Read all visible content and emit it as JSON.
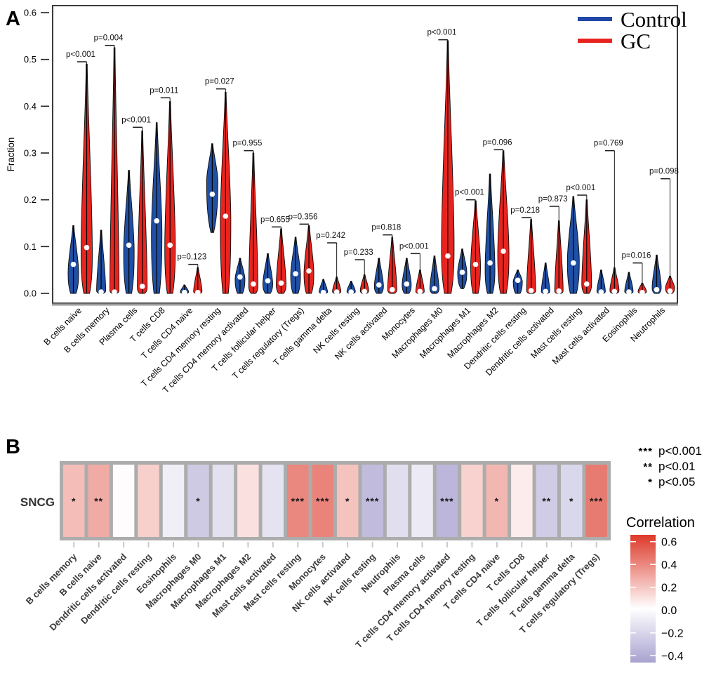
{
  "chart_data": [
    {
      "id": "violin_panel",
      "type": "violin",
      "panel_label": "A",
      "ylabel": "Fraction",
      "ylim": [
        0.0,
        0.6
      ],
      "yticks": [
        "0.0",
        "0.1",
        "0.2",
        "0.3",
        "0.4",
        "0.5",
        "0.6"
      ],
      "legend": [
        {
          "name": "Control",
          "color": "#2148a8"
        },
        {
          "name": "GC",
          "color": "#e8231f"
        }
      ],
      "categories": [
        "B cells naive",
        "B cells memory",
        "Plasma cells",
        "T cells CD8",
        "T cells CD4 naive",
        "T cells CD4 memory resting",
        "T cells CD4 memory activated",
        "T cells follicular helper",
        "T cells regulatory (Tregs)",
        "T cells gamma delta",
        "NK cells resting",
        "NK cells activated",
        "Monocytes",
        "Macrophages M0",
        "Macrophages M1",
        "Macrophages M2",
        "Dendritic cells resting",
        "Dendritic cells activated",
        "Mast cells resting",
        "Mast cells activated",
        "Eosinophils",
        "Neutrophils"
      ],
      "p_labels": [
        "p<0.001",
        "p=0.004",
        "p<0.001",
        "p=0.011",
        "p=0.123",
        "p=0.027",
        "p=0.955",
        "p=0.655",
        "p=0.356",
        "p=0.242",
        "p=0.233",
        "p=0.818",
        "p<0.001",
        "p<0.001",
        "p<0.001",
        "p=0.096",
        "p=0.218",
        "p=0.873",
        "p<0.001",
        "p=0.769",
        "p=0.016",
        "p=0.098"
      ],
      "bracket_y": [
        0.495,
        0.53,
        0.355,
        0.418,
        0.062,
        0.437,
        0.305,
        0.142,
        0.148,
        0.108,
        0.072,
        0.125,
        0.085,
        0.542,
        0.2,
        0.307,
        0.162,
        0.186,
        0.21,
        0.305,
        0.065,
        0.245
      ],
      "series": [
        {
          "name": "Control",
          "color": "#2050a5",
          "violins": [
            {
              "max": 0.145,
              "min": 0,
              "peak": 0.045,
              "median": 0.062,
              "w": 15
            },
            {
              "max": 0.135,
              "min": 0,
              "peak": 0.006,
              "median": 0.003,
              "w": 13
            },
            {
              "max": 0.263,
              "min": 0,
              "peak": 0.09,
              "median": 0.103,
              "w": 15
            },
            {
              "max": 0.365,
              "min": 0,
              "peak": 0.13,
              "median": 0.155,
              "w": 15
            },
            {
              "max": 0.018,
              "min": 0,
              "peak": 0.003,
              "median": 0.002,
              "w": 12
            },
            {
              "max": 0.32,
              "min": 0.13,
              "peak": 0.24,
              "median": 0.212,
              "w": 16
            },
            {
              "max": 0.075,
              "min": 0,
              "peak": 0.03,
              "median": 0.035,
              "w": 14
            },
            {
              "max": 0.085,
              "min": 0,
              "peak": 0.02,
              "median": 0.027,
              "w": 14
            },
            {
              "max": 0.12,
              "min": 0,
              "peak": 0.038,
              "median": 0.042,
              "w": 14
            },
            {
              "max": 0.03,
              "min": 0,
              "peak": 0.003,
              "median": 0.002,
              "w": 12
            },
            {
              "max": 0.026,
              "min": 0,
              "peak": 0.004,
              "median": 0.003,
              "w": 12
            },
            {
              "max": 0.075,
              "min": 0,
              "peak": 0.015,
              "median": 0.018,
              "w": 13
            },
            {
              "max": 0.075,
              "min": 0,
              "peak": 0.018,
              "median": 0.02,
              "w": 13
            },
            {
              "max": 0.08,
              "min": 0,
              "peak": 0.01,
              "median": 0.01,
              "w": 13
            },
            {
              "max": 0.095,
              "min": 0.01,
              "peak": 0.045,
              "median": 0.045,
              "w": 13
            },
            {
              "max": 0.255,
              "min": 0,
              "peak": 0.05,
              "median": 0.065,
              "w": 14
            },
            {
              "max": 0.05,
              "min": 0,
              "peak": 0.025,
              "median": 0.028,
              "w": 13
            },
            {
              "max": 0.065,
              "min": 0,
              "peak": 0.004,
              "median": 0.004,
              "w": 12
            },
            {
              "max": 0.207,
              "min": 0,
              "peak": 0.07,
              "median": 0.065,
              "w": 17
            },
            {
              "max": 0.05,
              "min": 0,
              "peak": 0.004,
              "median": 0.003,
              "w": 12
            },
            {
              "max": 0.045,
              "min": 0,
              "peak": 0.004,
              "median": 0.003,
              "w": 12
            },
            {
              "max": 0.082,
              "min": 0,
              "peak": 0.012,
              "median": 0.008,
              "w": 13
            }
          ]
        },
        {
          "name": "GC",
          "color": "#e8241f",
          "violins": [
            {
              "max": 0.49,
              "min": 0,
              "peak": 0.085,
              "median": 0.098,
              "w": 16
            },
            {
              "max": 0.525,
              "min": 0,
              "peak": 0.006,
              "median": 0.003,
              "w": 13
            },
            {
              "max": 0.347,
              "min": 0,
              "peak": 0.012,
              "median": 0.015,
              "w": 14
            },
            {
              "max": 0.41,
              "min": 0,
              "peak": 0.1,
              "median": 0.103,
              "w": 15
            },
            {
              "max": 0.055,
              "min": 0,
              "peak": 0.004,
              "median": 0.002,
              "w": 12
            },
            {
              "max": 0.43,
              "min": 0,
              "peak": 0.155,
              "median": 0.165,
              "w": 15
            },
            {
              "max": 0.3,
              "min": 0,
              "peak": 0.015,
              "median": 0.02,
              "w": 13
            },
            {
              "max": 0.138,
              "min": 0,
              "peak": 0.018,
              "median": 0.022,
              "w": 14
            },
            {
              "max": 0.145,
              "min": 0,
              "peak": 0.042,
              "median": 0.048,
              "w": 14
            },
            {
              "max": 0.035,
              "min": 0,
              "peak": 0.004,
              "median": 0.003,
              "w": 12
            },
            {
              "max": 0.04,
              "min": 0,
              "peak": 0.006,
              "median": 0.004,
              "w": 12
            },
            {
              "max": 0.12,
              "min": 0,
              "peak": 0.008,
              "median": 0.008,
              "w": 13
            },
            {
              "max": 0.05,
              "min": 0,
              "peak": 0.004,
              "median": 0.004,
              "w": 12
            },
            {
              "max": 0.54,
              "min": 0,
              "peak": 0.1,
              "median": 0.08,
              "w": 18
            },
            {
              "max": 0.198,
              "min": 0,
              "peak": 0.058,
              "median": 0.062,
              "w": 14
            },
            {
              "max": 0.305,
              "min": 0,
              "peak": 0.085,
              "median": 0.09,
              "w": 16
            },
            {
              "max": 0.158,
              "min": 0,
              "peak": 0.006,
              "median": 0.006,
              "w": 13
            },
            {
              "max": 0.155,
              "min": 0,
              "peak": 0.005,
              "median": 0.005,
              "w": 12
            },
            {
              "max": 0.2,
              "min": 0,
              "peak": 0.02,
              "median": 0.02,
              "w": 14
            },
            {
              "max": 0.055,
              "min": 0,
              "peak": 0.006,
              "median": 0.004,
              "w": 13
            },
            {
              "max": 0.022,
              "min": 0,
              "peak": 0.004,
              "median": 0.002,
              "w": 12
            },
            {
              "max": 0.037,
              "min": 0,
              "peak": 0.012,
              "median": 0.005,
              "w": 13
            }
          ]
        }
      ]
    },
    {
      "id": "heatmap_panel",
      "type": "heatmap",
      "panel_label": "B",
      "row_label": "SNCG",
      "categories": [
        "B cells memory",
        "B cells naive",
        "Dendritic cells activated",
        "Dendritic cells resting",
        "Eosinophils",
        "Macrophages M0",
        "Macrophages M1",
        "Macrophages M2",
        "Mast cells activated",
        "Mast cells resting",
        "Monocytes",
        "NK cells activated",
        "NK cells resting",
        "Neutrophils",
        "Plasma cells",
        "T cells CD4 memory activated",
        "T cells CD4 memory resting",
        "T cells CD4 naive",
        "T cells CD8",
        "T cells follicular helper",
        "T cells gamma delta",
        "T cells regulatory (Tregs)"
      ],
      "correlation": [
        0.22,
        0.28,
        0.01,
        0.16,
        -0.08,
        -0.26,
        -0.15,
        0.1,
        -0.14,
        0.4,
        0.41,
        0.2,
        -0.33,
        -0.16,
        -0.1,
        -0.36,
        0.15,
        0.24,
        0.06,
        -0.25,
        -0.2,
        0.44
      ],
      "stars": [
        "*",
        "**",
        "",
        "",
        "",
        "*",
        "",
        "",
        "",
        "***",
        "***",
        "*",
        "***",
        "",
        "",
        "***",
        "",
        "*",
        "",
        "**",
        "*",
        "***"
      ],
      "sig_legend": [
        {
          "stars": "***",
          "label": "p<0.001"
        },
        {
          "stars": "**",
          "label": "p<0.01"
        },
        {
          "stars": "*",
          "label": "p<0.05"
        }
      ],
      "colorbar": {
        "title": "Correlation",
        "ticks": [
          "0.6",
          "0.4",
          "0.2",
          "0.0",
          "-0.2",
          "-0.4"
        ],
        "top_color": "#dd392a",
        "mid_color": "#ffffff",
        "bottom_color": "#a8a2d0"
      }
    }
  ]
}
